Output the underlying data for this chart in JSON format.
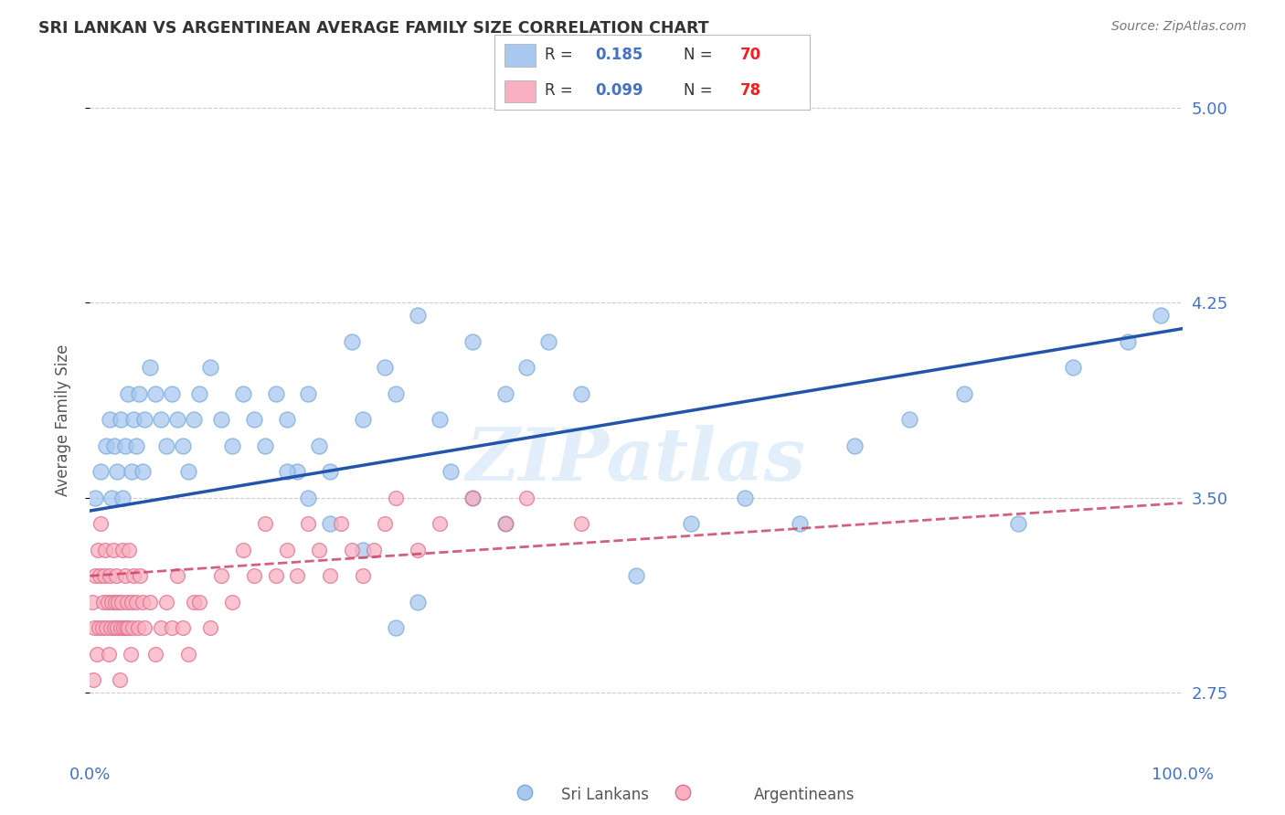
{
  "title": "SRI LANKAN VS ARGENTINEAN AVERAGE FAMILY SIZE CORRELATION CHART",
  "source": "Source: ZipAtlas.com",
  "ylabel": "Average Family Size",
  "watermark": "ZIPatlas",
  "sri_lankan": {
    "label": "Sri Lankans",
    "R": 0.185,
    "N": 70,
    "color": "#A8C8F0",
    "edge_color": "#7AAAD8",
    "line_color": "#2255AA",
    "x": [
      0.5,
      1.0,
      1.5,
      1.8,
      2.0,
      2.2,
      2.5,
      2.8,
      3.0,
      3.2,
      3.5,
      3.8,
      4.0,
      4.2,
      4.5,
      4.8,
      5.0,
      5.5,
      6.0,
      6.5,
      7.0,
      7.5,
      8.0,
      8.5,
      9.0,
      9.5,
      10.0,
      11.0,
      12.0,
      13.0,
      14.0,
      15.0,
      16.0,
      17.0,
      18.0,
      19.0,
      20.0,
      21.0,
      22.0,
      24.0,
      25.0,
      27.0,
      28.0,
      30.0,
      32.0,
      35.0,
      38.0,
      40.0,
      42.0,
      45.0,
      18.0,
      20.0,
      22.0,
      25.0,
      28.0,
      30.0,
      33.0,
      35.0,
      38.0,
      50.0,
      55.0,
      60.0,
      65.0,
      70.0,
      75.0,
      80.0,
      85.0,
      90.0,
      95.0,
      98.0
    ],
    "y": [
      3.5,
      3.6,
      3.7,
      3.8,
      3.5,
      3.7,
      3.6,
      3.8,
      3.5,
      3.7,
      3.9,
      3.6,
      3.8,
      3.7,
      3.9,
      3.6,
      3.8,
      4.0,
      3.9,
      3.8,
      3.7,
      3.9,
      3.8,
      3.7,
      3.6,
      3.8,
      3.9,
      4.0,
      3.8,
      3.7,
      3.9,
      3.8,
      3.7,
      3.9,
      3.8,
      3.6,
      3.9,
      3.7,
      3.6,
      4.1,
      3.8,
      4.0,
      3.9,
      4.2,
      3.8,
      4.1,
      3.9,
      4.0,
      4.1,
      3.9,
      3.6,
      3.5,
      3.4,
      3.3,
      3.0,
      3.1,
      3.6,
      3.5,
      3.4,
      3.2,
      3.4,
      3.5,
      3.4,
      3.7,
      3.8,
      3.9,
      3.4,
      4.0,
      4.1,
      4.2
    ]
  },
  "argentinean": {
    "label": "Argentineans",
    "R": 0.099,
    "N": 78,
    "color": "#F8B0C0",
    "edge_color": "#E07090",
    "line_color": "#CC4466",
    "x": [
      0.2,
      0.3,
      0.4,
      0.5,
      0.6,
      0.7,
      0.8,
      0.9,
      1.0,
      1.1,
      1.2,
      1.3,
      1.4,
      1.5,
      1.6,
      1.7,
      1.8,
      1.9,
      2.0,
      2.1,
      2.2,
      2.3,
      2.4,
      2.5,
      2.6,
      2.7,
      2.8,
      2.9,
      3.0,
      3.1,
      3.2,
      3.3,
      3.4,
      3.5,
      3.6,
      3.7,
      3.8,
      3.9,
      4.0,
      4.2,
      4.4,
      4.6,
      4.8,
      5.0,
      5.5,
      6.0,
      6.5,
      7.0,
      7.5,
      8.0,
      8.5,
      9.0,
      9.5,
      10.0,
      11.0,
      12.0,
      13.0,
      14.0,
      15.0,
      16.0,
      17.0,
      18.0,
      19.0,
      20.0,
      21.0,
      22.0,
      23.0,
      24.0,
      25.0,
      26.0,
      27.0,
      28.0,
      30.0,
      32.0,
      35.0,
      38.0,
      40.0,
      45.0
    ],
    "y": [
      3.1,
      2.8,
      3.0,
      3.2,
      2.9,
      3.3,
      3.0,
      3.2,
      3.4,
      3.0,
      3.1,
      3.2,
      3.3,
      3.0,
      3.1,
      2.9,
      3.2,
      3.0,
      3.1,
      3.3,
      3.0,
      3.1,
      3.2,
      3.0,
      3.1,
      2.8,
      3.0,
      3.1,
      3.3,
      3.0,
      3.2,
      3.0,
      3.1,
      3.0,
      3.3,
      2.9,
      3.1,
      3.0,
      3.2,
      3.1,
      3.0,
      3.2,
      3.1,
      3.0,
      3.1,
      2.9,
      3.0,
      3.1,
      3.0,
      3.2,
      3.0,
      2.9,
      3.1,
      3.1,
      3.0,
      3.2,
      3.1,
      3.3,
      3.2,
      3.4,
      3.2,
      3.3,
      3.2,
      3.4,
      3.3,
      3.2,
      3.4,
      3.3,
      3.2,
      3.3,
      3.4,
      3.5,
      3.3,
      3.4,
      3.5,
      3.4,
      3.5,
      3.4
    ]
  },
  "xlim": [
    0,
    100
  ],
  "ylim": [
    2.5,
    5.1
  ],
  "yticks": [
    2.75,
    3.5,
    4.25,
    5.0
  ],
  "right_ytick_labels": [
    "2.75",
    "3.50",
    "4.25",
    "5.00"
  ],
  "bg_color": "#FFFFFF",
  "grid_color": "#CCCCCC",
  "title_color": "#333333",
  "axis_color": "#4472C4",
  "legend_r_color": "#4472C4",
  "legend_n_color": "#EE2222"
}
